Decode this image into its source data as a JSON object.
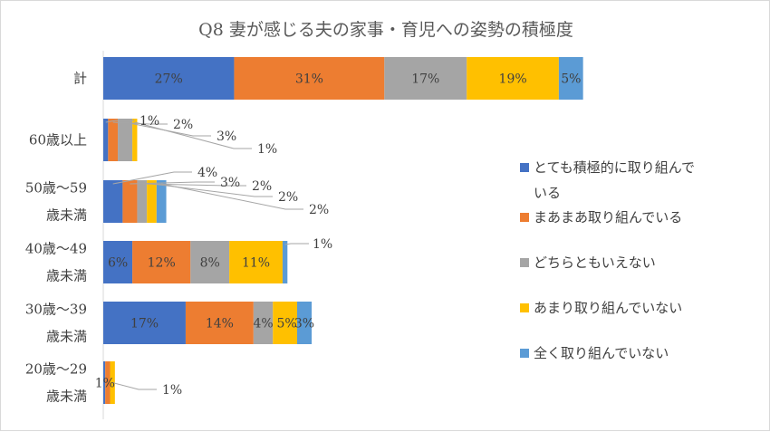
{
  "chart_data": {
    "type": "bar",
    "orientation": "horizontal",
    "stacked": true,
    "title": "Q8 妻が感じる夫の家事・育児への姿勢の積極度",
    "xlabel": "",
    "ylabel": "",
    "xlim": [
      0,
      100
    ],
    "grid": false,
    "legend_position": "right",
    "categories": [
      [
        "計"
      ],
      [
        "60歳以上"
      ],
      [
        "50歳～59",
        "歳未満"
      ],
      [
        "40歳～49",
        "歳未満"
      ],
      [
        "30歳～39",
        "歳未満"
      ],
      [
        "20歳～29",
        "歳未満"
      ]
    ],
    "series": [
      {
        "name": "とても積極的に取り組んでいる",
        "legend_lines": [
          "とても積極的に取り組んで",
          "いる"
        ],
        "color": "#4472C4",
        "values": [
          27,
          1,
          4,
          6,
          17,
          0.4
        ],
        "labels": [
          "27%",
          "1%",
          "4%",
          "6%",
          "17%",
          ""
        ]
      },
      {
        "name": "まあまあ取り組んでいる",
        "legend_lines": [
          "まあまあ取り組んでいる"
        ],
        "color": "#ED7D31",
        "values": [
          31,
          2,
          3,
          12,
          14,
          1
        ],
        "labels": [
          "31%",
          "2%",
          "3%",
          "12%",
          "14%",
          "1%"
        ]
      },
      {
        "name": "どちらともいえない",
        "legend_lines": [
          "どちらともいえない"
        ],
        "color": "#A5A5A5",
        "values": [
          17,
          3,
          2,
          8,
          4,
          0
        ],
        "labels": [
          "17%",
          "3%",
          "2%",
          "8%",
          "4%",
          ""
        ]
      },
      {
        "name": "あまり取り組んでいない",
        "legend_lines": [
          "あまり取り組んでいない"
        ],
        "color": "#FFC000",
        "values": [
          19,
          1,
          2,
          11,
          5,
          1
        ],
        "labels": [
          "19%",
          "1%",
          "2%",
          "11%",
          "5%",
          "1%"
        ]
      },
      {
        "name": "全く取り組んでいない",
        "legend_lines": [
          "全く取り組んでいない"
        ],
        "color": "#5B9BD5",
        "values": [
          5,
          0,
          2,
          1,
          3,
          0
        ],
        "labels": [
          "5%",
          "",
          "2%",
          "1%",
          "3%",
          ""
        ]
      }
    ]
  }
}
